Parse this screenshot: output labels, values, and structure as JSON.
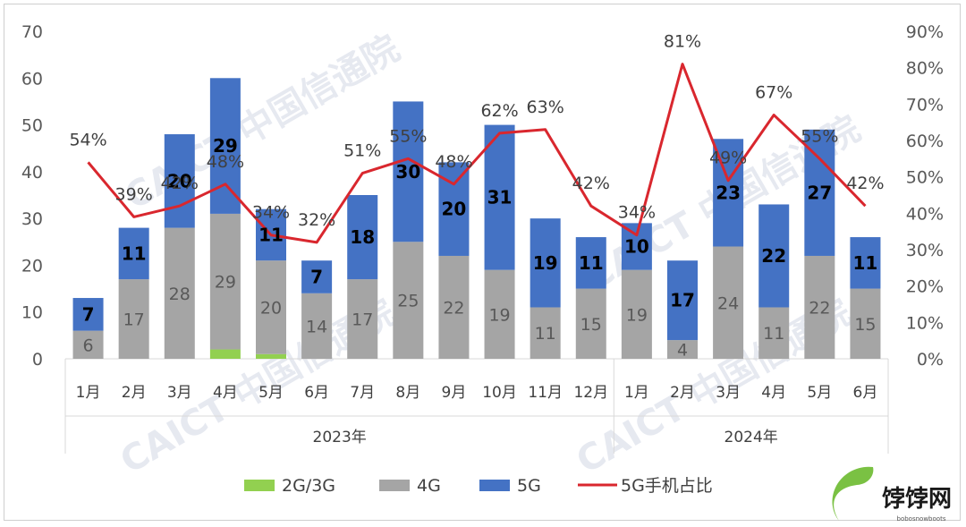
{
  "chart_data": {
    "type": "bar",
    "stacked": true,
    "groups": [
      {
        "label": "2023年",
        "months": [
          "1月",
          "2月",
          "3月",
          "4月",
          "5月",
          "6月",
          "7月",
          "8月",
          "9月",
          "10月",
          "11月",
          "12月"
        ]
      },
      {
        "label": "2024年",
        "months": [
          "1月",
          "2月",
          "3月",
          "4月",
          "5月",
          "6月"
        ]
      }
    ],
    "series": [
      {
        "name": "2G/3G",
        "color": "#92d050",
        "values": [
          0,
          0,
          0,
          2,
          1,
          0,
          0,
          0,
          0,
          0,
          0,
          0,
          0,
          0,
          0,
          0,
          0,
          0
        ],
        "labels": [
          "",
          "",
          "",
          "",
          "",
          "",
          "",
          "",
          "",
          "",
          "",
          "",
          "",
          "",
          "",
          "",
          "",
          ""
        ]
      },
      {
        "name": "4G",
        "color": "#a5a5a5",
        "values": [
          6,
          17,
          28,
          29,
          20,
          14,
          17,
          25,
          22,
          19,
          11,
          15,
          19,
          4,
          24,
          11,
          22,
          15
        ],
        "labels": [
          "6",
          "17",
          "28",
          "29",
          "20",
          "14",
          "17",
          "25",
          "22",
          "19",
          "11",
          "15",
          "19",
          "4",
          "24",
          "11",
          "22",
          "15"
        ]
      },
      {
        "name": "5G",
        "color": "#4472c4",
        "values": [
          7,
          11,
          20,
          29,
          11,
          7,
          18,
          30,
          20,
          31,
          19,
          11,
          10,
          17,
          23,
          22,
          27,
          11
        ],
        "labels": [
          "7",
          "11",
          "20",
          "29",
          "11",
          "7",
          "18",
          "30",
          "20",
          "31",
          "19",
          "11",
          "10",
          "17",
          "23",
          "22",
          "27",
          "11"
        ]
      }
    ],
    "line": {
      "name": "5G手机占比",
      "color": "#d9272e",
      "values": [
        54,
        39,
        42,
        48,
        34,
        32,
        51,
        55,
        48,
        62,
        63,
        42,
        34,
        81,
        49,
        67,
        55,
        42
      ],
      "labels": [
        "54%",
        "39%",
        "42%",
        "48%",
        "34%",
        "32%",
        "51%",
        "55%",
        "48%",
        "62%",
        "63%",
        "42%",
        "34%",
        "81%",
        "49%",
        "67%",
        "55%",
        "42%"
      ]
    },
    "y_left": {
      "min": 0,
      "max": 70,
      "ticks": [
        "0",
        "10",
        "20",
        "30",
        "40",
        "50",
        "60",
        "70"
      ]
    },
    "y_right": {
      "min": 0,
      "max": 90,
      "ticks": [
        "0%",
        "10%",
        "20%",
        "30%",
        "40%",
        "50%",
        "60%",
        "70%",
        "80%",
        "90%"
      ]
    },
    "legend_position": "bottom",
    "grid": false
  },
  "watermark": "CAICT 中国信通院",
  "brand": {
    "name": "饽饽网",
    "sub": "bobosnowboots"
  }
}
